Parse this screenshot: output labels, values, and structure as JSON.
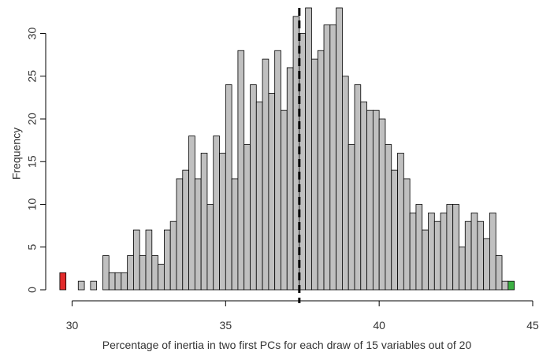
{
  "chart_data": {
    "type": "bar",
    "title": "",
    "xlabel": "Percentage of inertia in two first PCs for each draw of 15 variables out of 20",
    "ylabel": "Frequency",
    "xlim": [
      29.5,
      45
    ],
    "ylim": [
      0,
      33
    ],
    "xticks": [
      "30",
      "35",
      "40",
      "45"
    ],
    "yticks": [
      "0",
      "5",
      "10",
      "15",
      "20",
      "25",
      "30"
    ],
    "bin_width": 0.2,
    "bin_starts": [
      29.6,
      29.8,
      30.0,
      30.2,
      30.4,
      30.6,
      30.8,
      31.0,
      31.2,
      31.4,
      31.6,
      31.8,
      32.0,
      32.2,
      32.4,
      32.6,
      32.8,
      33.0,
      33.2,
      33.4,
      33.6,
      33.8,
      34.0,
      34.2,
      34.4,
      34.6,
      34.8,
      35.0,
      35.2,
      35.4,
      35.6,
      35.8,
      36.0,
      36.2,
      36.4,
      36.6,
      36.8,
      37.0,
      37.2,
      37.4,
      37.6,
      37.8,
      38.0,
      38.2,
      38.4,
      38.6,
      38.8,
      39.0,
      39.2,
      39.4,
      39.6,
      39.8,
      40.0,
      40.2,
      40.4,
      40.6,
      40.8,
      41.0,
      41.2,
      41.4,
      41.6,
      41.8,
      42.0,
      42.2,
      42.4,
      42.6,
      42.8,
      43.0,
      43.2,
      43.4,
      43.6,
      43.8,
      44.0,
      44.2
    ],
    "values": [
      2,
      0,
      0,
      1,
      0,
      1,
      0,
      4,
      2,
      2,
      2,
      4,
      7,
      4,
      7,
      4,
      3,
      7,
      8,
      13,
      14,
      18,
      13,
      16,
      10,
      18,
      16,
      24,
      13,
      28,
      17,
      24,
      22,
      27,
      23,
      28,
      21,
      26,
      32,
      30,
      33,
      27,
      28,
      31,
      31,
      33,
      25,
      17,
      24,
      22,
      21,
      21,
      20,
      17,
      14,
      16,
      13,
      9,
      10,
      7,
      9,
      8,
      9,
      10,
      10,
      5,
      8,
      9,
      8,
      6,
      9,
      4,
      1,
      1
    ],
    "bar_colors": {
      "default": "#c0c0c0",
      "first": "#e32b2b",
      "last": "#3cb043"
    },
    "reference_line": {
      "x": 37.4,
      "style": "dashed",
      "color": "#000000"
    }
  }
}
